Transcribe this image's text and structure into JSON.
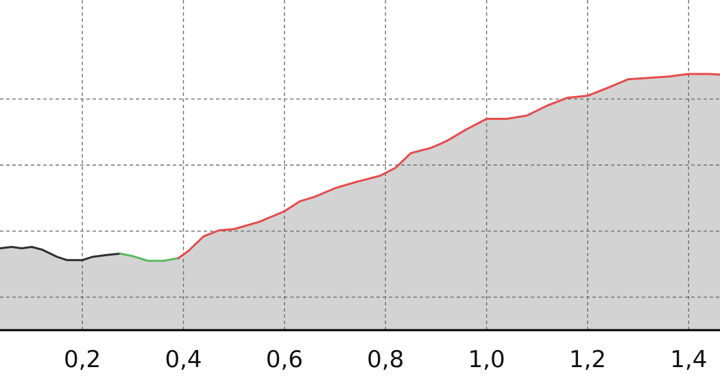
{
  "chart_data": {
    "type": "area",
    "title": "",
    "xlabel": "",
    "ylabel": "",
    "x_tick_labels": [
      "0,2",
      "0,4",
      "0,6",
      "0,8",
      "1,0",
      "1,2",
      "1,4"
    ],
    "x_ticks": [
      0.2,
      0.4,
      0.6,
      0.8,
      1.0,
      1.2,
      1.4
    ],
    "xlim": [
      0.037,
      1.462
    ],
    "ylim": [
      0,
      5
    ],
    "y_gridlines": [
      0.5,
      1.5,
      2.5,
      3.5
    ],
    "grid": true,
    "fill_color": "#d3d3d3",
    "series": [
      {
        "color": "#2f2f2f",
        "points": [
          [
            0.037,
            1.24
          ],
          [
            0.06,
            1.26
          ],
          [
            0.08,
            1.24
          ],
          [
            0.1,
            1.26
          ],
          [
            0.12,
            1.22
          ],
          [
            0.15,
            1.11
          ],
          [
            0.17,
            1.06
          ],
          [
            0.2,
            1.06
          ],
          [
            0.22,
            1.11
          ],
          [
            0.25,
            1.14
          ],
          [
            0.275,
            1.16
          ]
        ]
      },
      {
        "color": "#5cb85c",
        "points": [
          [
            0.275,
            1.16
          ],
          [
            0.3,
            1.12
          ],
          [
            0.33,
            1.05
          ],
          [
            0.36,
            1.05
          ],
          [
            0.39,
            1.09
          ]
        ]
      },
      {
        "color": "#e64b4b",
        "points": [
          [
            0.39,
            1.09
          ],
          [
            0.41,
            1.2
          ],
          [
            0.44,
            1.42
          ],
          [
            0.47,
            1.51
          ],
          [
            0.5,
            1.53
          ],
          [
            0.55,
            1.64
          ],
          [
            0.6,
            1.8
          ],
          [
            0.63,
            1.95
          ],
          [
            0.66,
            2.02
          ],
          [
            0.7,
            2.15
          ],
          [
            0.74,
            2.24
          ],
          [
            0.79,
            2.34
          ],
          [
            0.82,
            2.46
          ],
          [
            0.85,
            2.68
          ],
          [
            0.89,
            2.76
          ],
          [
            0.92,
            2.86
          ],
          [
            0.96,
            3.04
          ],
          [
            1.0,
            3.2
          ],
          [
            1.04,
            3.2
          ],
          [
            1.08,
            3.25
          ],
          [
            1.12,
            3.4
          ],
          [
            1.16,
            3.52
          ],
          [
            1.2,
            3.55
          ],
          [
            1.24,
            3.67
          ],
          [
            1.28,
            3.8
          ],
          [
            1.32,
            3.82
          ],
          [
            1.36,
            3.84
          ],
          [
            1.4,
            3.88
          ],
          [
            1.44,
            3.88
          ],
          [
            1.462,
            3.87
          ]
        ]
      }
    ]
  }
}
